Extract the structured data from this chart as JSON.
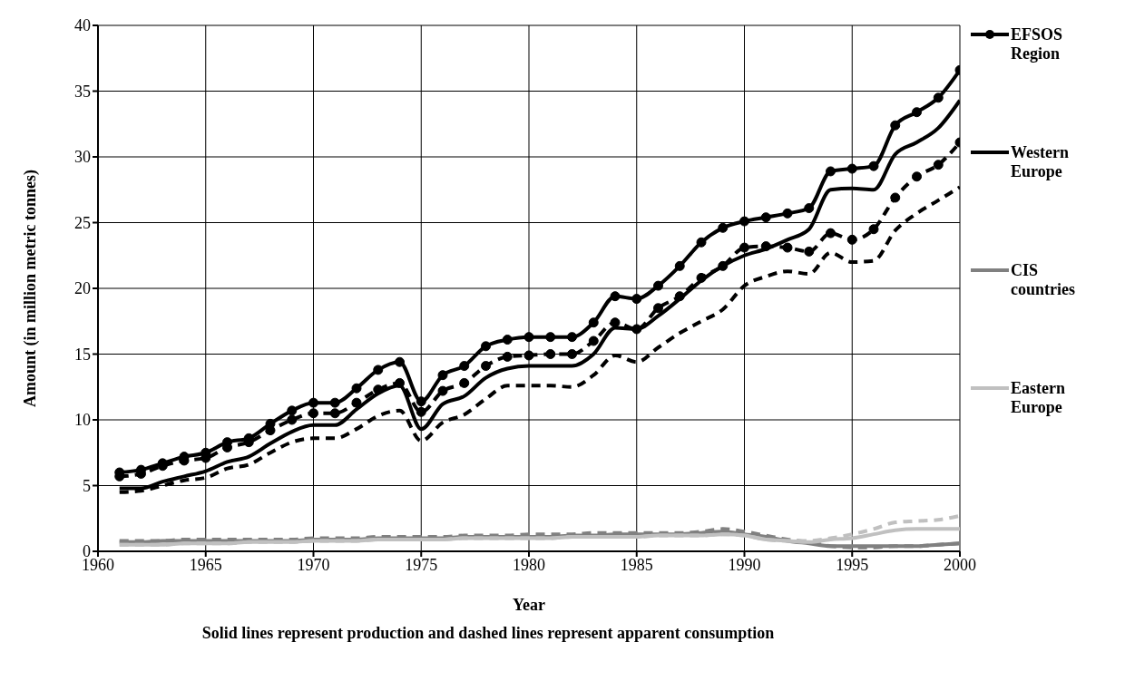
{
  "chart_data": {
    "type": "line",
    "xlabel": "Year",
    "ylabel": "Amount (in million metric tonnes)",
    "annotations": [
      "Solid lines represent production and dashed lines represent apparent consumption"
    ],
    "x": [
      1961,
      1962,
      1963,
      1964,
      1965,
      1966,
      1967,
      1968,
      1969,
      1970,
      1971,
      1972,
      1973,
      1974,
      1975,
      1976,
      1977,
      1978,
      1979,
      1980,
      1981,
      1982,
      1983,
      1984,
      1985,
      1986,
      1987,
      1988,
      1989,
      1990,
      1991,
      1992,
      1993,
      1994,
      1995,
      1996,
      1997,
      1998,
      1999,
      2000
    ],
    "xlim": [
      1960,
      2000
    ],
    "xticks": [
      1960,
      1965,
      1970,
      1975,
      1980,
      1985,
      1990,
      1995,
      2000
    ],
    "ylim": [
      0,
      40
    ],
    "yticks": [
      0,
      5,
      10,
      15,
      20,
      25,
      30,
      35,
      40
    ],
    "grid": true,
    "legend": "right",
    "series": [
      {
        "name": "EFSOS Region",
        "color": "#000000",
        "marker": "circle",
        "line_style": "solid",
        "values": [
          6.0,
          6.2,
          6.7,
          7.2,
          7.5,
          8.3,
          8.6,
          9.7,
          10.7,
          11.3,
          11.3,
          12.4,
          13.8,
          14.4,
          11.4,
          13.4,
          14.1,
          15.6,
          16.1,
          16.3,
          16.3,
          16.3,
          17.4,
          19.4,
          19.2,
          20.2,
          21.7,
          23.5,
          24.6,
          25.1,
          25.4,
          25.7,
          26.1,
          28.9,
          29.1,
          29.3,
          32.4,
          33.4,
          34.5,
          36.6
        ]
      },
      {
        "color": "#000000",
        "marker": "circle",
        "line_style": "dashed",
        "values": [
          5.7,
          5.9,
          6.5,
          6.9,
          7.1,
          7.9,
          8.3,
          9.2,
          10.0,
          10.5,
          10.5,
          11.3,
          12.3,
          12.8,
          10.6,
          12.2,
          12.8,
          14.1,
          14.8,
          14.9,
          15.0,
          15.0,
          16.0,
          17.4,
          16.9,
          18.5,
          19.4,
          20.8,
          21.7,
          23.1,
          23.2,
          23.1,
          22.8,
          24.2,
          23.7,
          24.5,
          26.9,
          28.5,
          29.4,
          31.1
        ]
      },
      {
        "name": "Western Europe",
        "color": "#000000",
        "marker": "none",
        "line_style": "solid",
        "values": [
          4.8,
          4.8,
          5.3,
          5.7,
          6.1,
          6.8,
          7.2,
          8.2,
          9.1,
          9.6,
          9.6,
          10.8,
          12.0,
          12.6,
          9.3,
          11.2,
          11.8,
          13.2,
          13.9,
          14.1,
          14.1,
          14.1,
          15.0,
          17.0,
          16.9,
          17.9,
          19.2,
          20.6,
          21.7,
          22.5,
          23.0,
          23.7,
          24.5,
          27.5,
          27.6,
          27.5,
          30.2,
          31.1,
          32.2,
          34.3
        ]
      },
      {
        "color": "#000000",
        "marker": "none",
        "line_style": "dashed",
        "values": [
          4.5,
          4.6,
          5.0,
          5.4,
          5.6,
          6.3,
          6.6,
          7.5,
          8.3,
          8.6,
          8.6,
          9.3,
          10.3,
          10.7,
          8.4,
          9.8,
          10.4,
          11.6,
          12.6,
          12.6,
          12.6,
          12.5,
          13.4,
          14.9,
          14.4,
          15.5,
          16.6,
          17.5,
          18.4,
          20.2,
          20.9,
          21.3,
          21.1,
          22.7,
          22.0,
          22.1,
          24.4,
          25.7,
          26.7,
          27.7
        ]
      },
      {
        "name": "CIS countries",
        "color": "#808080",
        "marker": "none",
        "line_style": "solid",
        "values": [
          0.7,
          0.7,
          0.8,
          0.8,
          0.8,
          0.8,
          0.8,
          0.8,
          0.8,
          0.9,
          0.9,
          0.9,
          1.0,
          1.0,
          1.0,
          1.0,
          1.1,
          1.1,
          1.1,
          1.1,
          1.1,
          1.2,
          1.2,
          1.3,
          1.3,
          1.3,
          1.3,
          1.4,
          1.5,
          1.3,
          1.1,
          0.8,
          0.6,
          0.4,
          0.4,
          0.4,
          0.4,
          0.4,
          0.5,
          0.6
        ]
      },
      {
        "color": "#808080",
        "marker": "none",
        "line_style": "dashed",
        "values": [
          0.8,
          0.8,
          0.8,
          0.9,
          0.9,
          0.9,
          0.9,
          0.9,
          0.9,
          1.0,
          1.0,
          1.0,
          1.1,
          1.1,
          1.1,
          1.1,
          1.2,
          1.2,
          1.2,
          1.3,
          1.3,
          1.3,
          1.4,
          1.4,
          1.4,
          1.4,
          1.4,
          1.5,
          1.7,
          1.5,
          1.2,
          0.9,
          0.7,
          0.4,
          0.3,
          0.3,
          0.4,
          0.4,
          0.5,
          0.6
        ]
      },
      {
        "name": "Eastern Europe",
        "color": "#c0c0c0",
        "marker": "none",
        "line_style": "solid",
        "values": [
          0.5,
          0.5,
          0.5,
          0.6,
          0.6,
          0.6,
          0.7,
          0.7,
          0.7,
          0.8,
          0.8,
          0.8,
          0.9,
          0.9,
          0.9,
          0.9,
          1.0,
          1.0,
          1.0,
          1.0,
          1.0,
          1.1,
          1.1,
          1.1,
          1.1,
          1.2,
          1.2,
          1.2,
          1.3,
          1.2,
          0.9,
          0.8,
          0.7,
          0.9,
          1.0,
          1.3,
          1.6,
          1.7,
          1.7,
          1.7
        ]
      },
      {
        "color": "#c0c0c0",
        "marker": "none",
        "line_style": "dashed",
        "values": [
          0.5,
          0.5,
          0.5,
          0.6,
          0.6,
          0.6,
          0.7,
          0.7,
          0.7,
          0.8,
          0.8,
          0.8,
          0.9,
          0.9,
          0.9,
          0.9,
          1.0,
          1.0,
          1.0,
          1.0,
          1.0,
          1.1,
          1.1,
          1.1,
          1.1,
          1.2,
          1.2,
          1.2,
          1.3,
          1.2,
          0.9,
          0.8,
          0.8,
          1.0,
          1.3,
          1.7,
          2.2,
          2.3,
          2.4,
          2.7
        ]
      }
    ]
  }
}
